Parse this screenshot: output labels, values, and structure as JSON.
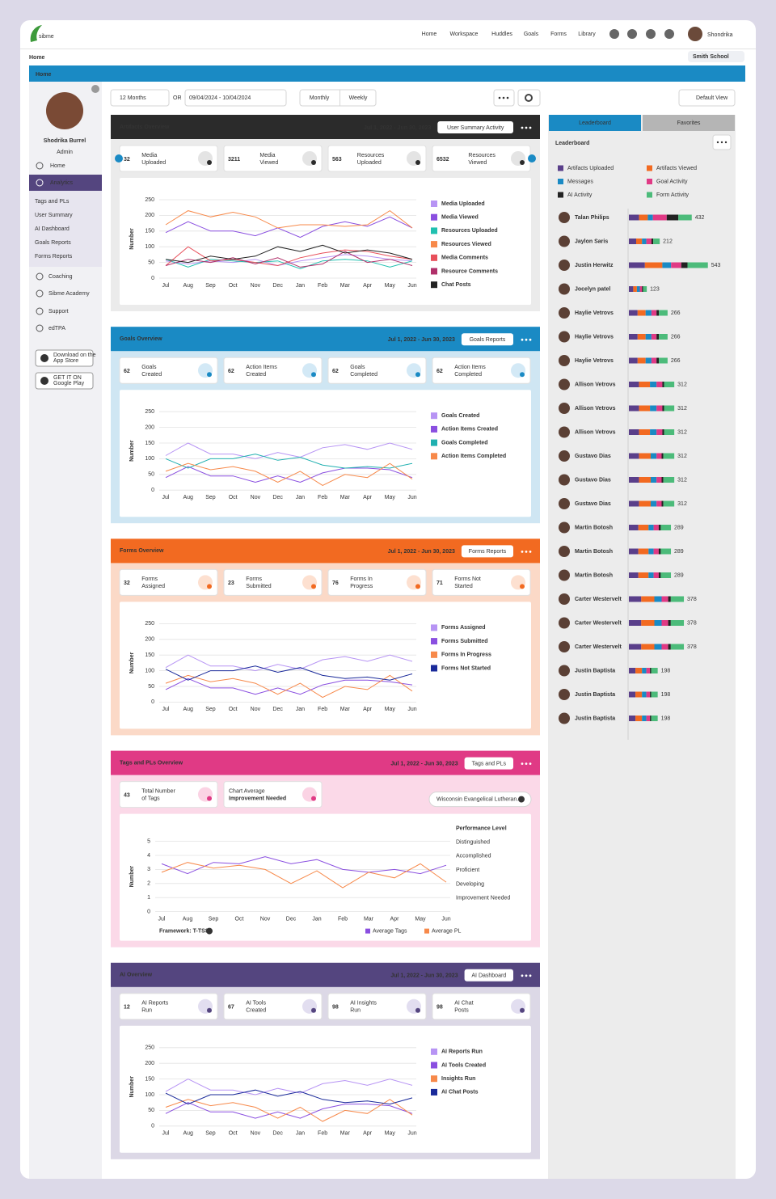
{
  "brand": "sibme",
  "nav": [
    "Home",
    "Workspace",
    "Huddles",
    "Goals",
    "Forms",
    "Library"
  ],
  "user": "Shondrika",
  "breadcrumb": "Home",
  "school": "Smith School",
  "page_title": "Home",
  "sidebar": {
    "name": "Shodrika Burrel",
    "role": "Admin",
    "menu": [
      "Home",
      "Analytics"
    ],
    "submenu": [
      "Tags and PLs",
      "User Summary",
      "AI Dashboard",
      "Goals Reports",
      "Forms Reports"
    ],
    "more": [
      "Coaching",
      "Sibme Academy",
      "Support",
      "edTPA"
    ],
    "stores": [
      [
        "Download on the",
        "App Store"
      ],
      [
        "GET IT ON",
        "Google Play"
      ]
    ]
  },
  "toolbar": {
    "range": "12 Months",
    "or": "OR",
    "dates": "09/04/2024 - 10/04/2024",
    "modes": [
      "Monthly",
      "Weekly"
    ],
    "view": "Default View"
  },
  "panels": [
    {
      "title": "Artifacts Overview",
      "date": "Jul 1, 2022 - Jun 30, 2023",
      "button": "User Summary Activity",
      "header_color": "#2b2b2b",
      "body_color": "#ebebeb",
      "icon_color": "#e4e4e4",
      "stats": [
        {
          "value": 32,
          "label": [
            "Media",
            "Uploaded"
          ]
        },
        {
          "value": 3211,
          "label": [
            "Media",
            "Viewed"
          ]
        },
        {
          "value": 563,
          "label": [
            "Resources",
            "Uploaded"
          ]
        },
        {
          "value": 6532,
          "label": [
            "Resources",
            "Viewed"
          ]
        }
      ],
      "chart": {
        "type": "line",
        "ylabel": "Number",
        "categories": [
          "Jul",
          "Aug",
          "Sep",
          "Oct",
          "Nov",
          "Dec",
          "Jan",
          "Feb",
          "Mar",
          "Apr",
          "May",
          "Jun"
        ],
        "ylim": [
          0,
          250
        ],
        "yticks": [
          0,
          50,
          100,
          150,
          200,
          250
        ],
        "grid": true,
        "series": [
          {
            "name": "Media Uploaded",
            "color": "#b794f4",
            "values": [
              55,
              45,
              55,
              50,
              60,
              40,
              55,
              65,
              75,
              70,
              60,
              55
            ]
          },
          {
            "name": "Media Viewed",
            "color": "#8a4fe0",
            "values": [
              145,
              180,
              150,
              150,
              135,
              160,
              130,
              165,
              180,
              165,
              195,
              160
            ]
          },
          {
            "name": "Resources Uploaded",
            "color": "#20c0b0",
            "values": [
              60,
              35,
              60,
              55,
              50,
              55,
              30,
              55,
              60,
              55,
              35,
              55
            ]
          },
          {
            "name": "Resources Viewed",
            "color": "#f7894a",
            "values": [
              170,
              215,
              195,
              210,
              195,
              160,
              170,
              170,
              165,
              170,
              215,
              160
            ]
          },
          {
            "name": "Media Comments",
            "color": "#e8505b",
            "values": [
              40,
              100,
              55,
              60,
              50,
              40,
              65,
              80,
              90,
              85,
              70,
              60
            ]
          },
          {
            "name": "Resource Comments",
            "color": "#b0306a",
            "values": [
              40,
              60,
              50,
              65,
              45,
              65,
              35,
              45,
              85,
              50,
              60,
              40
            ]
          },
          {
            "name": "Chat Posts",
            "color": "#222222",
            "values": [
              60,
              50,
              70,
              60,
              70,
              100,
              85,
              105,
              80,
              90,
              80,
              60
            ]
          }
        ]
      }
    },
    {
      "title": "Goals Overview",
      "date": "Jul 1, 2022 - Jun 30, 2023",
      "button": "Goals Reports",
      "header_color": "#1a8ac4",
      "body_color": "#cfe6f3",
      "icon_color": "#d3e9f6",
      "stats": [
        {
          "value": 62,
          "label": [
            "Goals",
            "Created"
          ]
        },
        {
          "value": 62,
          "label": [
            "Action Items",
            "Created"
          ]
        },
        {
          "value": 62,
          "label": [
            "Goals",
            "Completed"
          ]
        },
        {
          "value": 62,
          "label": [
            "Action Items",
            "Completed"
          ]
        }
      ],
      "chart": {
        "type": "line",
        "ylabel": "Number",
        "categories": [
          "Jul",
          "Aug",
          "Sep",
          "Oct",
          "Nov",
          "Dec",
          "Jan",
          "Feb",
          "Mar",
          "Apr",
          "May",
          "Jun"
        ],
        "ylim": [
          0,
          250
        ],
        "yticks": [
          0,
          50,
          100,
          150,
          200,
          250
        ],
        "grid": true,
        "series": [
          {
            "name": "Goals Created",
            "color": "#b794f4",
            "values": [
              110,
              150,
              115,
              115,
              100,
              120,
              105,
              135,
              145,
              130,
              150,
              130
            ]
          },
          {
            "name": "Action Items Created",
            "color": "#8a4fe0",
            "values": [
              40,
              75,
              45,
              45,
              25,
              45,
              25,
              55,
              70,
              70,
              65,
              40
            ]
          },
          {
            "name": "Goals Completed",
            "color": "#20b0b0",
            "values": [
              100,
              70,
              100,
              100,
              115,
              95,
              105,
              80,
              70,
              75,
              70,
              85
            ]
          },
          {
            "name": "Action Items Completed",
            "color": "#f7894a",
            "values": [
              60,
              85,
              65,
              75,
              60,
              25,
              60,
              15,
              50,
              40,
              85,
              35
            ]
          }
        ]
      }
    },
    {
      "title": "Forms Overview",
      "date": "Jul 1, 2022 - Jun 30, 2023",
      "button": "Forms Reports",
      "header_color": "#f26a21",
      "body_color": "#fbd9c7",
      "icon_color": "#fde0d0",
      "stats": [
        {
          "value": 32,
          "label": [
            "Forms",
            "Assigned"
          ]
        },
        {
          "value": 23,
          "label": [
            "Forms",
            "Submitted"
          ]
        },
        {
          "value": 76,
          "label": [
            "Forms In",
            "Progress"
          ]
        },
        {
          "value": 71,
          "label": [
            "Forms Not",
            "Started"
          ]
        }
      ],
      "chart": {
        "type": "line",
        "ylabel": "Number",
        "categories": [
          "Jul",
          "Aug",
          "Sep",
          "Oct",
          "Nov",
          "Dec",
          "Jan",
          "Feb",
          "Mar",
          "Apr",
          "May",
          "Jun"
        ],
        "ylim": [
          0,
          250
        ],
        "yticks": [
          0,
          50,
          100,
          150,
          200,
          250
        ],
        "grid": true,
        "series": [
          {
            "name": "Forms Assigned",
            "color": "#b794f4",
            "values": [
              110,
              150,
              115,
              115,
              100,
              120,
              105,
              135,
              145,
              130,
              150,
              130
            ]
          },
          {
            "name": "Forms Submitted",
            "color": "#8a4fe0",
            "values": [
              40,
              75,
              45,
              45,
              25,
              45,
              25,
              55,
              70,
              70,
              65,
              55
            ]
          },
          {
            "name": "Forms In Progress",
            "color": "#f7894a",
            "values": [
              60,
              85,
              65,
              75,
              60,
              25,
              60,
              15,
              50,
              40,
              85,
              35
            ]
          },
          {
            "name": "Forms Not Started",
            "color": "#1a2a9a",
            "values": [
              105,
              70,
              100,
              100,
              115,
              95,
              110,
              85,
              75,
              80,
              70,
              90
            ]
          }
        ]
      }
    },
    {
      "title": "Tags and PLs Overview",
      "date": "Jul 1, 2022 - Jun 30, 2023",
      "button": "Tags and PLs",
      "header_color": "#e03a85",
      "body_color": "#fbd9e8",
      "icon_color": "#fbd3e4",
      "stats": [
        {
          "value": 43,
          "label": [
            "Total Number",
            "of Tags"
          ]
        },
        {
          "label": [
            "Chart Average",
            "Improvement Needed"
          ]
        }
      ],
      "dropdown": "Wisconsin Evangelical Lutheran...",
      "chart": {
        "type": "line",
        "ylabel": "Number",
        "categories": [
          "Jul",
          "Aug",
          "Sep",
          "Oct",
          "Nov",
          "Dec",
          "Jan",
          "Feb",
          "Mar",
          "Apr",
          "May",
          "Jun"
        ],
        "ylim": [
          0,
          5
        ],
        "yticks": [
          0,
          1,
          2,
          3,
          4,
          5
        ],
        "grid": true,
        "legend_title": "Performance Level",
        "levels": [
          "Distinguished",
          "Accomplished",
          "Proficient",
          "Developing",
          "Improvement Needed"
        ],
        "framework": "Framework: T-TSS",
        "series": [
          {
            "name": "Average Tags",
            "color": "#8a4fe0",
            "values": [
              3.4,
              2.7,
              3.5,
              3.4,
              3.9,
              3.4,
              3.7,
              3.0,
              2.8,
              3.0,
              2.7,
              3.3
            ]
          },
          {
            "name": "Average PL",
            "color": "#f7894a",
            "values": [
              2.8,
              3.5,
              3.1,
              3.3,
              3.0,
              2.0,
              2.9,
              1.7,
              2.8,
              2.4,
              3.4,
              2.1
            ]
          }
        ]
      }
    },
    {
      "title": "AI Overview",
      "date": "Jul 1, 2022 - Jun 30, 2023",
      "button": "AI Dashboard",
      "header_color": "#54457f",
      "body_color": "#dcd8e6",
      "icon_color": "#e2def0",
      "stats": [
        {
          "value": 12,
          "label": [
            "AI Reports",
            "Run"
          ]
        },
        {
          "value": 67,
          "label": [
            "AI Tools",
            "Created"
          ]
        },
        {
          "value": 98,
          "label": [
            "AI Insights",
            "Run"
          ]
        },
        {
          "value": 98,
          "label": [
            "AI Chat",
            "Posts"
          ]
        }
      ],
      "chart": {
        "type": "line",
        "ylabel": "Number",
        "categories": [
          "Jul",
          "Aug",
          "Sep",
          "Oct",
          "Nov",
          "Dec",
          "Jan",
          "Feb",
          "Mar",
          "Apr",
          "May",
          "Jun"
        ],
        "ylim": [
          0,
          250
        ],
        "yticks": [
          0,
          50,
          100,
          150,
          200,
          250
        ],
        "grid": true,
        "series": [
          {
            "name": "AI Reports Run",
            "color": "#b794f4",
            "values": [
              110,
              150,
              115,
              115,
              100,
              120,
              105,
              135,
              145,
              130,
              150,
              130
            ]
          },
          {
            "name": "AI Tools Created",
            "color": "#8a4fe0",
            "values": [
              40,
              75,
              45,
              45,
              25,
              45,
              25,
              55,
              70,
              70,
              65,
              40
            ]
          },
          {
            "name": "Insights Run",
            "color": "#f7894a",
            "values": [
              60,
              85,
              65,
              75,
              60,
              25,
              60,
              15,
              50,
              40,
              85,
              35
            ]
          },
          {
            "name": "AI Chat Posts",
            "color": "#1a2a9a",
            "values": [
              105,
              70,
              100,
              100,
              115,
              95,
              110,
              85,
              75,
              80,
              70,
              90
            ]
          }
        ]
      }
    }
  ],
  "leaderboard": {
    "tabs": [
      "Leaderboard",
      "Favorites"
    ],
    "title": "Leaderboard",
    "legend": [
      {
        "name": "Artifacts Uploaded",
        "color": "#5a3f8a"
      },
      {
        "name": "Artifacts Viewed",
        "color": "#f26a21"
      },
      {
        "name": "Messages",
        "color": "#1a8ac4"
      },
      {
        "name": "Goal Activity",
        "color": "#e03a85"
      },
      {
        "name": "AI Activity",
        "color": "#222222"
      },
      {
        "name": "Form Activity",
        "color": "#4cbb7a"
      }
    ],
    "rows": [
      {
        "name": "Talan Philips",
        "total": 432,
        "segments": [
          70,
          60,
          35,
          95,
          80,
          92
        ]
      },
      {
        "name": "Jaylon Saris",
        "total": 212,
        "segments": [
          50,
          40,
          30,
          35,
          12,
          45
        ]
      },
      {
        "name": "Justin Herwitz",
        "total": 543,
        "segments": [
          110,
          120,
          60,
          70,
          43,
          140
        ]
      },
      {
        "name": "Jocelyn patel",
        "total": 123,
        "segments": [
          30,
          25,
          20,
          15,
          8,
          25
        ]
      },
      {
        "name": "Haylie Vetrovs",
        "total": 266,
        "segments": [
          60,
          55,
          40,
          35,
          16,
          60
        ]
      },
      {
        "name": "Haylie Vetrovs",
        "total": 266,
        "segments": [
          60,
          55,
          40,
          35,
          16,
          60
        ]
      },
      {
        "name": "Haylie Vetrovs",
        "total": 266,
        "segments": [
          60,
          55,
          40,
          35,
          16,
          60
        ]
      },
      {
        "name": "Allison Vetrovs",
        "total": 312,
        "segments": [
          70,
          75,
          45,
          40,
          12,
          70
        ]
      },
      {
        "name": "Allison Vetrovs",
        "total": 312,
        "segments": [
          70,
          75,
          45,
          40,
          12,
          70
        ]
      },
      {
        "name": "Allison Vetrovs",
        "total": 312,
        "segments": [
          70,
          75,
          45,
          40,
          12,
          70
        ]
      },
      {
        "name": "Gustavo Dias",
        "total": 312,
        "segments": [
          70,
          80,
          40,
          35,
          12,
          75
        ]
      },
      {
        "name": "Gustavo Dias",
        "total": 312,
        "segments": [
          70,
          80,
          40,
          35,
          12,
          75
        ]
      },
      {
        "name": "Gustavo Dias",
        "total": 312,
        "segments": [
          70,
          80,
          40,
          35,
          12,
          75
        ]
      },
      {
        "name": "Martin Botosh",
        "total": 289,
        "segments": [
          65,
          70,
          35,
          35,
          14,
          70
        ]
      },
      {
        "name": "Martin Botosh",
        "total": 289,
        "segments": [
          65,
          70,
          35,
          35,
          14,
          70
        ]
      },
      {
        "name": "Martin Botosh",
        "total": 289,
        "segments": [
          65,
          70,
          35,
          35,
          14,
          70
        ]
      },
      {
        "name": "Carter Westervelt",
        "total": 378,
        "segments": [
          85,
          90,
          50,
          45,
          18,
          90
        ]
      },
      {
        "name": "Carter Westervelt",
        "total": 378,
        "segments": [
          85,
          90,
          50,
          45,
          18,
          90
        ]
      },
      {
        "name": "Carter Westervelt",
        "total": 378,
        "segments": [
          85,
          90,
          50,
          45,
          18,
          90
        ]
      },
      {
        "name": "Justin Baptista",
        "total": 198,
        "segments": [
          45,
          45,
          30,
          25,
          8,
          45
        ]
      },
      {
        "name": "Justin Baptista",
        "total": 198,
        "segments": [
          45,
          45,
          30,
          25,
          8,
          45
        ]
      },
      {
        "name": "Justin Baptista",
        "total": 198,
        "segments": [
          45,
          45,
          30,
          25,
          8,
          45
        ]
      }
    ]
  }
}
